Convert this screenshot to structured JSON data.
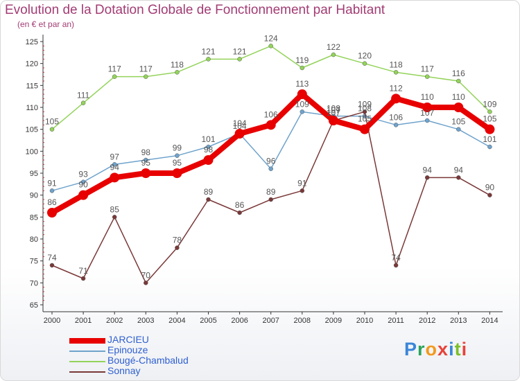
{
  "title": "Evolution de la Dotation Globale de Fonctionnement par Habitant",
  "subtitle": "(en € et par an)",
  "logo_text": "Proxiti",
  "chart_data": {
    "type": "line",
    "title": "Evolution de la Dotation Globale de Fonctionnement par Habitant",
    "ylabel": "(en € et par an)",
    "xlabel": "",
    "ylim": [
      65,
      125
    ],
    "ytick_step": 5,
    "grid": false,
    "legend_position": "bottom-left",
    "x": [
      "2000",
      "2001",
      "2002",
      "2003",
      "2004",
      "2005",
      "2006",
      "2007",
      "2008",
      "2009",
      "2010",
      "2011",
      "2012",
      "2013",
      "2014"
    ],
    "series": [
      {
        "name": "JARCIEU",
        "color": "#e80000",
        "values": [
          86,
          90,
          94,
          95,
          95,
          98,
          104,
          106,
          113,
          107,
          105,
          112,
          110,
          110,
          105
        ]
      },
      {
        "name": "Epinouze",
        "color": "#6fa3cc",
        "values": [
          91,
          93,
          97,
          98,
          99,
          101,
          104,
          96,
          109,
          108,
          108,
          106,
          107,
          105,
          101
        ]
      },
      {
        "name": "Bougé-Chambalud",
        "color": "#93d35a",
        "values": [
          105,
          111,
          117,
          117,
          118,
          121,
          121,
          124,
          119,
          122,
          120,
          118,
          117,
          116,
          109
        ]
      },
      {
        "name": "Sonnay",
        "color": "#7a3838",
        "values": [
          74,
          71,
          85,
          70,
          78,
          89,
          86,
          89,
          91,
          107,
          109,
          74,
          94,
          94,
          90
        ]
      }
    ]
  }
}
